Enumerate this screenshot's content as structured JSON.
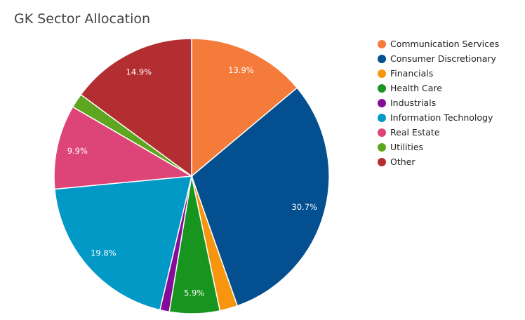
{
  "chart_data": {
    "type": "pie",
    "title": "GK Sector Allocation",
    "categories": [
      "Communication Services",
      "Consumer Discretionary",
      "Financials",
      "Health Care",
      "Industrials",
      "Information Technology",
      "Real Estate",
      "Utilities",
      "Other"
    ],
    "values": [
      13.9,
      30.7,
      2.1,
      5.9,
      1.1,
      19.8,
      9.9,
      1.7,
      14.9
    ],
    "data_labels": [
      "13.9%",
      "30.7%",
      "",
      "5.9%",
      "",
      "19.8%",
      "9.9%",
      "",
      "14.9%"
    ],
    "colors": [
      "#f47b3a",
      "#034f8f",
      "#f7960e",
      "#17951f",
      "#870b9b",
      "#0399c7",
      "#dd4477",
      "#5ea61f",
      "#b32e30"
    ],
    "legend_position": "right"
  }
}
